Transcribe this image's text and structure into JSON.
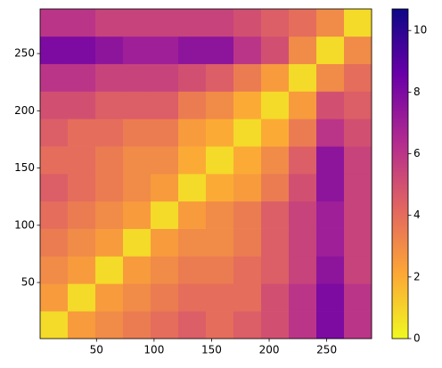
{
  "chart_data": {
    "type": "heatmap",
    "x_edges": [
      1,
      25,
      49,
      73,
      97,
      121,
      145,
      169,
      193,
      217,
      241,
      265,
      289
    ],
    "y_edges": [
      1,
      25,
      49,
      73,
      97,
      121,
      145,
      169,
      193,
      217,
      241,
      265,
      289
    ],
    "values": [
      [
        0.8,
        2.5,
        3,
        3.5,
        4,
        4.5,
        4,
        4.5,
        5,
        6,
        8,
        6
      ],
      [
        2.5,
        0.8,
        2.5,
        3,
        3.5,
        4,
        4,
        4,
        5,
        6,
        8,
        6
      ],
      [
        3,
        2.5,
        0.8,
        2.5,
        3,
        3.5,
        3.5,
        4,
        4.5,
        5.5,
        7.5,
        5.5
      ],
      [
        3.5,
        3,
        2.5,
        0.8,
        2.5,
        3,
        3,
        3.5,
        4.5,
        5.5,
        7,
        5.5
      ],
      [
        4,
        3.5,
        3,
        2.5,
        0.8,
        2.5,
        3,
        3.5,
        4.5,
        5.5,
        7,
        5.5
      ],
      [
        4.5,
        4,
        3.5,
        3,
        2.5,
        0.8,
        2,
        2.5,
        3.5,
        5,
        7.5,
        5.5
      ],
      [
        4,
        4,
        3.5,
        3,
        3,
        2,
        0.8,
        2,
        3,
        4.5,
        7.5,
        5.5
      ],
      [
        4.5,
        4,
        4,
        3.5,
        3.5,
        2.5,
        2,
        0.8,
        2,
        3.5,
        6,
        5
      ],
      [
        5,
        5,
        4.5,
        4.5,
        4.5,
        3.5,
        3,
        2,
        0.8,
        2.5,
        5,
        4.5
      ],
      [
        6,
        6,
        5.5,
        5.5,
        5.5,
        5,
        4.5,
        3.5,
        2.5,
        0.8,
        3,
        4
      ],
      [
        8,
        8,
        7.5,
        7,
        7,
        7.5,
        7.5,
        6,
        5,
        3,
        0.8,
        3
      ],
      [
        6,
        6,
        5.5,
        5.5,
        5.5,
        5.5,
        5.5,
        5,
        4.5,
        4,
        3,
        0.8
      ]
    ],
    "xlim": [
      1,
      289
    ],
    "ylim": [
      1,
      289
    ],
    "xticks": [
      50,
      100,
      150,
      200,
      250
    ],
    "yticks": [
      50,
      100,
      150,
      200,
      250
    ],
    "colorbar": {
      "lim": [
        0,
        10.7
      ],
      "ticks": [
        0,
        2,
        4,
        6,
        8,
        10
      ],
      "colors": [
        "#f0f921",
        "#fca636",
        "#e16462",
        "#b12a90",
        "#6a00a8",
        "#0d0887"
      ]
    }
  }
}
